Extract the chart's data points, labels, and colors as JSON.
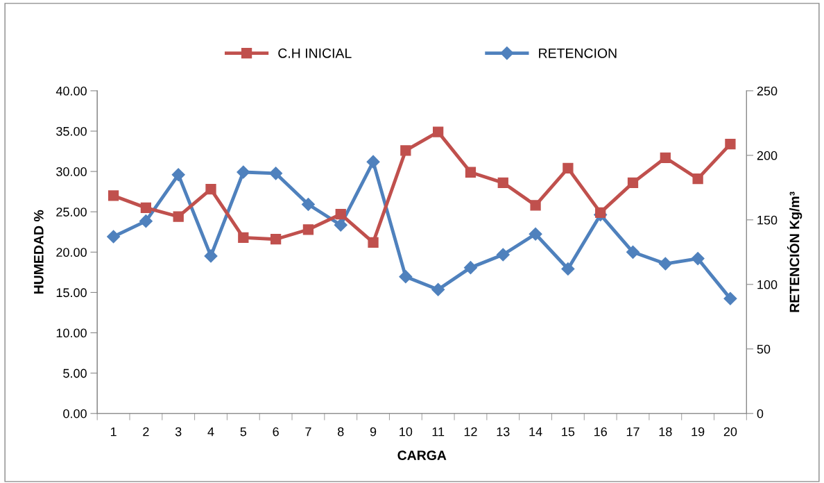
{
  "chart_data": {
    "type": "line",
    "xlabel": "CARGA",
    "ylabel": "HUMEDAD %",
    "y2label": "RETENCIÓN Kg/m³",
    "categories": [
      "1",
      "2",
      "3",
      "4",
      "5",
      "6",
      "7",
      "8",
      "9",
      "10",
      "11",
      "12",
      "13",
      "14",
      "15",
      "16",
      "17",
      "18",
      "19",
      "20"
    ],
    "series": [
      {
        "name": "C.H INICIAL",
        "color": "#c0504d",
        "marker": "square",
        "values": [
          27.0,
          25.5,
          24.4,
          27.8,
          21.8,
          21.6,
          22.8,
          24.7,
          21.2,
          32.6,
          34.9,
          29.9,
          28.6,
          25.8,
          30.4,
          24.9,
          28.6,
          31.7,
          29.1,
          33.4
        ]
      },
      {
        "name": "RETENCION",
        "color": "#4f81bd",
        "marker": "diamond",
        "axis": "y2",
        "values": [
          137,
          149,
          185,
          122,
          187,
          186,
          162,
          146,
          195,
          106,
          96,
          113,
          123,
          139,
          112,
          154,
          125,
          116,
          120,
          89
        ]
      }
    ],
    "ylim": [
      0,
      40
    ],
    "yticks": [
      {
        "value": 0,
        "label": "0.00"
      },
      {
        "value": 5,
        "label": "5.00"
      },
      {
        "value": 10,
        "label": "10.00"
      },
      {
        "value": 15,
        "label": "15.00"
      },
      {
        "value": 20,
        "label": "20.00"
      },
      {
        "value": 25,
        "label": "25.00"
      },
      {
        "value": 30,
        "label": "30.00"
      },
      {
        "value": 35,
        "label": "35.00"
      },
      {
        "value": 40,
        "label": "40.00"
      }
    ],
    "y2lim": [
      0,
      250
    ],
    "y2ticks": [
      0,
      50,
      100,
      150,
      200,
      250
    ],
    "grid": false,
    "legend": "top",
    "line_style": "solid"
  }
}
